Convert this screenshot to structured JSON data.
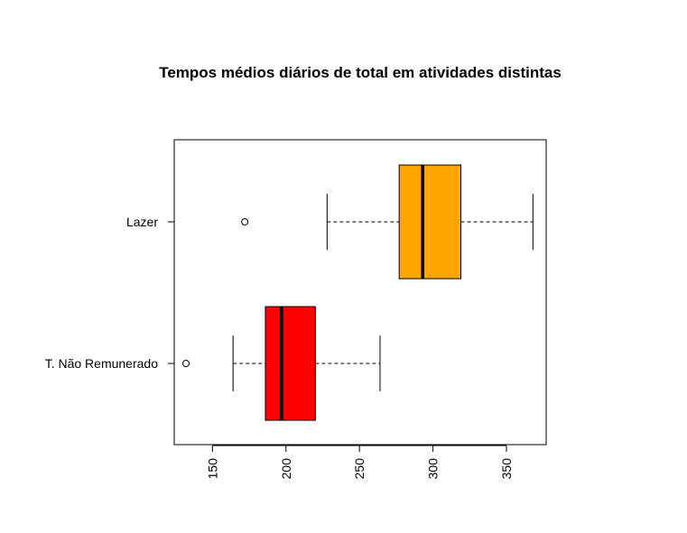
{
  "chart_data": {
    "type": "boxplot",
    "orientation": "horizontal",
    "title": "Tempos médios diários de total em atividades distintas",
    "xlabel": "",
    "ylabel": "",
    "xlim": [
      124,
      377
    ],
    "xticks": [
      150,
      200,
      250,
      300,
      350
    ],
    "grid": false,
    "categories": [
      "T. Não Remunerado",
      "Lazer"
    ],
    "series": [
      {
        "category": "T. Não Remunerado",
        "color": "#FF0000",
        "whisker_low": 164,
        "q1": 186,
        "median": 197,
        "q3": 220,
        "whisker_high": 264,
        "outliers": [
          132
        ]
      },
      {
        "category": "Lazer",
        "color": "#FFA500",
        "whisker_low": 228,
        "q1": 277,
        "median": 293,
        "q3": 319,
        "whisker_high": 368,
        "outliers": [
          172
        ]
      }
    ]
  }
}
